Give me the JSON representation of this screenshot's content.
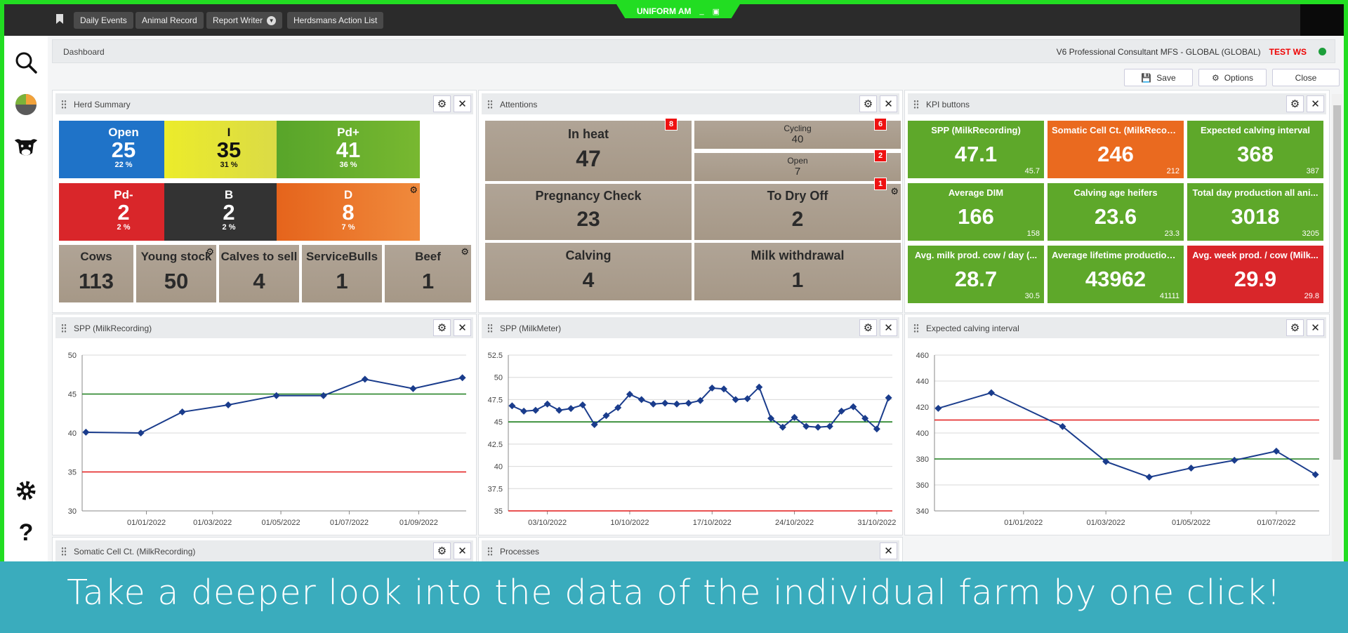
{
  "window": {
    "title": "UNIFORM AM",
    "minimize": "_",
    "restore": "▣"
  },
  "nav": {
    "items": [
      "Daily Events",
      "Animal Record",
      "Report Writer",
      "Herdsmans Action List"
    ]
  },
  "dashboard": {
    "title": "Dashboard",
    "license": "V6 Professional Consultant MFS - GLOBAL (GLOBAL)",
    "workspace": "TEST WS",
    "status_color": "#1c9e3a",
    "actions": {
      "save": "Save",
      "options": "Options",
      "close": "Close"
    }
  },
  "herd_summary": {
    "title": "Herd Summary",
    "top_tiles": [
      {
        "label": "Open",
        "value": "25",
        "pct": "22 %",
        "color": "#1f73c8"
      },
      {
        "label": "I",
        "value": "35",
        "pct": "31 %",
        "color": "#e6e62a"
      },
      {
        "label": "Pd+",
        "value": "41",
        "pct": "36 %",
        "color": "#5ea82a"
      },
      {
        "label": "Pd-",
        "value": "2",
        "pct": "2 %",
        "color": "#d9262a"
      },
      {
        "label": "B",
        "value": "2",
        "pct": "2 %",
        "color": "#333333"
      },
      {
        "label": "D",
        "value": "8",
        "pct": "7 %",
        "color": "#ea6a1f"
      }
    ],
    "bottom_tiles": [
      {
        "label": "Cows",
        "value": "113"
      },
      {
        "label": "Young stock",
        "value": "50"
      },
      {
        "label": "Calves to sell",
        "value": "4"
      },
      {
        "label": "ServiceBulls",
        "value": "1"
      },
      {
        "label": "Beef",
        "value": "1"
      }
    ]
  },
  "attentions": {
    "title": "Attentions",
    "in_heat": {
      "label": "In heat",
      "value": "47",
      "badge": "8"
    },
    "cycling": {
      "label": "Cycling",
      "value": "40",
      "badge": "6"
    },
    "open": {
      "label": "Open",
      "value": "7",
      "badge": "2"
    },
    "pregnancy_check": {
      "label": "Pregnancy Check",
      "value": "23"
    },
    "to_dry_off": {
      "label": "To Dry Off",
      "value": "2",
      "badge": "1"
    },
    "calving": {
      "label": "Calving",
      "value": "4"
    },
    "milk_withdrawal": {
      "label": "Milk withdrawal",
      "value": "1"
    }
  },
  "kpi": {
    "title": "KPI buttons",
    "tiles": [
      {
        "label": "SPP (MilkRecording)",
        "value": "47.1",
        "target": "45.7",
        "color": "#5ea82a"
      },
      {
        "label": "Somatic Cell Ct. (MilkRecordi...",
        "value": "246",
        "target": "212",
        "color": "#ea6a1f"
      },
      {
        "label": "Expected calving interval",
        "value": "368",
        "target": "387",
        "color": "#5ea82a"
      },
      {
        "label": "Average DIM",
        "value": "166",
        "target": "158",
        "color": "#5ea82a"
      },
      {
        "label": "Calving age heifers",
        "value": "23.6",
        "target": "23.3",
        "color": "#5ea82a"
      },
      {
        "label": "Total day production all ani...",
        "value": "3018",
        "target": "3205",
        "color": "#5ea82a"
      },
      {
        "label": "Avg. milk prod. cow / day (...",
        "value": "28.7",
        "target": "30.5",
        "color": "#5ea82a"
      },
      {
        "label": "Average lifetime production ...",
        "value": "43962",
        "target": "41111",
        "color": "#5ea82a"
      },
      {
        "label": "Avg. week prod. / cow (Milk...",
        "value": "29.9",
        "target": "29.8",
        "color": "#d9262a"
      }
    ]
  },
  "panels_bottom": {
    "somatic": "Somatic Cell Ct. (MilkRecording)",
    "processes": "Processes"
  },
  "banner": {
    "text": "Take a deeper look into the data of the individual farm by one click!"
  },
  "chart_data": [
    {
      "type": "line",
      "title": "SPP (MilkRecording)",
      "ylim": [
        30,
        50
      ],
      "yticks": [
        30,
        35,
        40,
        45,
        50
      ],
      "xticks": [
        "01/01/2022",
        "01/03/2022",
        "01/05/2022",
        "01/07/2022",
        "01/09/2022"
      ],
      "x": [
        "2021-11-08",
        "2021-12-27",
        "2022-02-02",
        "2022-03-15",
        "2022-04-27",
        "2022-06-08",
        "2022-07-15",
        "2022-08-27",
        "2022-10-10"
      ],
      "series": [
        {
          "values": [
            40.1,
            40.0,
            42.7,
            43.6,
            44.8,
            44.8,
            46.9,
            45.7,
            47.1
          ]
        }
      ],
      "reference_lines": [
        {
          "value": 45,
          "color": "#1b7d1b"
        },
        {
          "value": 35,
          "color": "#e21818"
        }
      ],
      "line_color": "#1a3c8c",
      "grid": true
    },
    {
      "type": "line",
      "title": "SPP (MilkMeter)",
      "ylim": [
        35,
        52.5
      ],
      "yticks": [
        35,
        37.5,
        40,
        42.5,
        45,
        47.5,
        50,
        52.5
      ],
      "xticks": [
        "03/10/2022",
        "10/10/2022",
        "17/10/2022",
        "24/10/2022",
        "31/10/2022"
      ],
      "x": [
        "2022-09-30",
        "2022-10-01",
        "2022-10-02",
        "2022-10-03",
        "2022-10-04",
        "2022-10-05",
        "2022-10-06",
        "2022-10-07",
        "2022-10-08",
        "2022-10-09",
        "2022-10-10",
        "2022-10-11",
        "2022-10-12",
        "2022-10-13",
        "2022-10-14",
        "2022-10-15",
        "2022-10-16",
        "2022-10-17",
        "2022-10-18",
        "2022-10-19",
        "2022-10-20",
        "2022-10-21",
        "2022-10-22",
        "2022-10-23",
        "2022-10-24",
        "2022-10-25",
        "2022-10-26",
        "2022-10-27",
        "2022-10-28",
        "2022-10-29",
        "2022-10-30",
        "2022-10-31",
        "2022-11-01"
      ],
      "series": [
        {
          "values": [
            46.8,
            46.2,
            46.3,
            47.0,
            46.3,
            46.5,
            46.9,
            44.7,
            45.7,
            46.6,
            48.1,
            47.5,
            47.0,
            47.1,
            47.0,
            47.1,
            47.4,
            48.8,
            48.7,
            47.5,
            47.6,
            48.9,
            45.4,
            44.4,
            45.5,
            44.5,
            44.4,
            44.5,
            46.2,
            46.7,
            45.4,
            44.2,
            47.7
          ]
        }
      ],
      "reference_lines": [
        {
          "value": 45,
          "color": "#1b7d1b"
        },
        {
          "value": 35,
          "color": "#e21818"
        }
      ],
      "line_color": "#1a3c8c",
      "grid": true
    },
    {
      "type": "line",
      "title": "Expected calving interval",
      "ylim": [
        340,
        460
      ],
      "yticks": [
        340,
        360,
        380,
        400,
        420,
        440,
        460
      ],
      "xticks": [
        "01/01/2022",
        "01/03/2022",
        "01/05/2022",
        "01/07/2022"
      ],
      "x": [
        "2021-11-01",
        "2021-12-09",
        "2022-01-29",
        "2022-03-01",
        "2022-04-01",
        "2022-05-01",
        "2022-06-01",
        "2022-07-01",
        "2022-07-29"
      ],
      "series": [
        {
          "values": [
            419,
            431,
            405,
            378,
            366,
            373,
            379,
            386,
            368
          ]
        }
      ],
      "reference_lines": [
        {
          "value": 410,
          "color": "#e21818"
        },
        {
          "value": 380,
          "color": "#1b7d1b"
        }
      ],
      "line_color": "#1a3c8c",
      "grid": true
    }
  ]
}
